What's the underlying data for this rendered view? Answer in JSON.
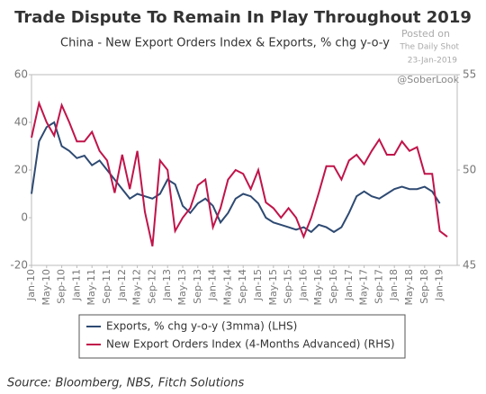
{
  "chart_data": {
    "type": "line",
    "title": "Trade Dispute To Remain In Play Throughout 2019",
    "subtitle": "China - New Export Orders Index & Exports, % chg y-o-y",
    "annotations": [
      "Posted on",
      "The Daily Shot",
      "23-Jan-2019",
      "@SoberLook"
    ],
    "source": "Source: Bloomberg, NBS, Fitch Solutions",
    "categories": [
      "Jan-10",
      null,
      "May-10",
      null,
      "Sep-10",
      null,
      "Jan-11",
      null,
      "May-11",
      null,
      "Sep-11",
      null,
      "Jan-12",
      null,
      "May-12",
      null,
      "Sep-12",
      null,
      "Jan-13",
      null,
      "May-13",
      null,
      "Sep-13",
      null,
      "Jan-14",
      null,
      "May-14",
      null,
      "Sep-14",
      null,
      "Jan-15",
      null,
      "May-15",
      null,
      "Sep-15",
      null,
      "Jan-16",
      null,
      "May-16",
      null,
      "Sep-16",
      null,
      "Jan-17",
      null,
      "May-17",
      null,
      "Sep-17",
      null,
      "Jan-18",
      null,
      "May-18",
      null,
      "Sep-18",
      null,
      "Jan-19",
      null
    ],
    "series": [
      {
        "name": "Exports, % chg y-o-y (3mma) (LHS)",
        "color": "#2e4a72",
        "axis": "y",
        "values": [
          10,
          32,
          38,
          40,
          30,
          28,
          25,
          26,
          22,
          24,
          20,
          16,
          12,
          8,
          10,
          9,
          8,
          10,
          16,
          14,
          5,
          2,
          6,
          8,
          5,
          -2,
          2,
          8,
          10,
          9,
          6,
          0,
          -2,
          -3,
          -4,
          -5,
          -4,
          -6,
          -3,
          -4,
          -6,
          -4,
          2,
          9,
          11,
          9,
          8,
          10,
          12,
          13,
          12,
          12,
          13,
          11,
          6,
          null
        ]
      },
      {
        "name": "New Export Orders Index (4-Months Advanced) (RHS)",
        "color": "#c0144a",
        "axis": "y2",
        "values": [
          51.7,
          53.5,
          52.5,
          51.8,
          53.4,
          52.5,
          51.5,
          51.5,
          52.0,
          51.0,
          50.5,
          48.8,
          50.8,
          49.0,
          51.0,
          47.8,
          46.0,
          50.5,
          50.0,
          46.8,
          47.5,
          48.0,
          49.2,
          49.5,
          47.0,
          48.0,
          49.5,
          50.0,
          49.8,
          49.0,
          50.0,
          48.3,
          48.0,
          47.5,
          48.0,
          47.5,
          46.5,
          47.5,
          48.8,
          50.2,
          50.2,
          49.5,
          50.5,
          50.8,
          50.3,
          51.0,
          51.6,
          50.8,
          50.8,
          51.5,
          51.0,
          51.2,
          49.8,
          49.8,
          46.8,
          46.5
        ]
      }
    ],
    "ylim": [
      -20,
      60
    ],
    "yticks": [
      -20,
      0,
      20,
      40,
      60
    ],
    "y2lim": [
      45,
      55
    ],
    "y2ticks": [
      45,
      50,
      55
    ],
    "grid": false
  }
}
